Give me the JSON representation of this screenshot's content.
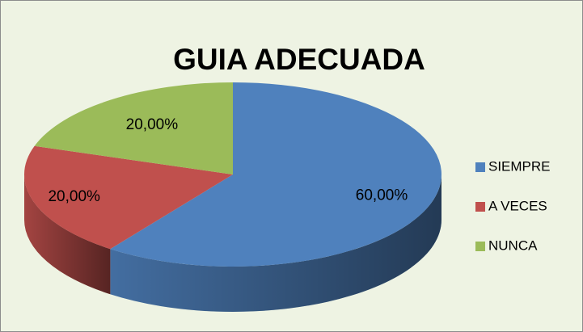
{
  "chart_data": {
    "type": "pie",
    "title": "GUIA ADECUADA",
    "categories": [
      "SIEMPRE",
      "A VECES",
      "NUNCA"
    ],
    "values": [
      60,
      20,
      20
    ],
    "value_labels": [
      "60,00%",
      "20,00%",
      "20,00%"
    ],
    "colors": [
      "#4f81bd",
      "#c0504d",
      "#9bbb59"
    ],
    "legend": "right"
  }
}
